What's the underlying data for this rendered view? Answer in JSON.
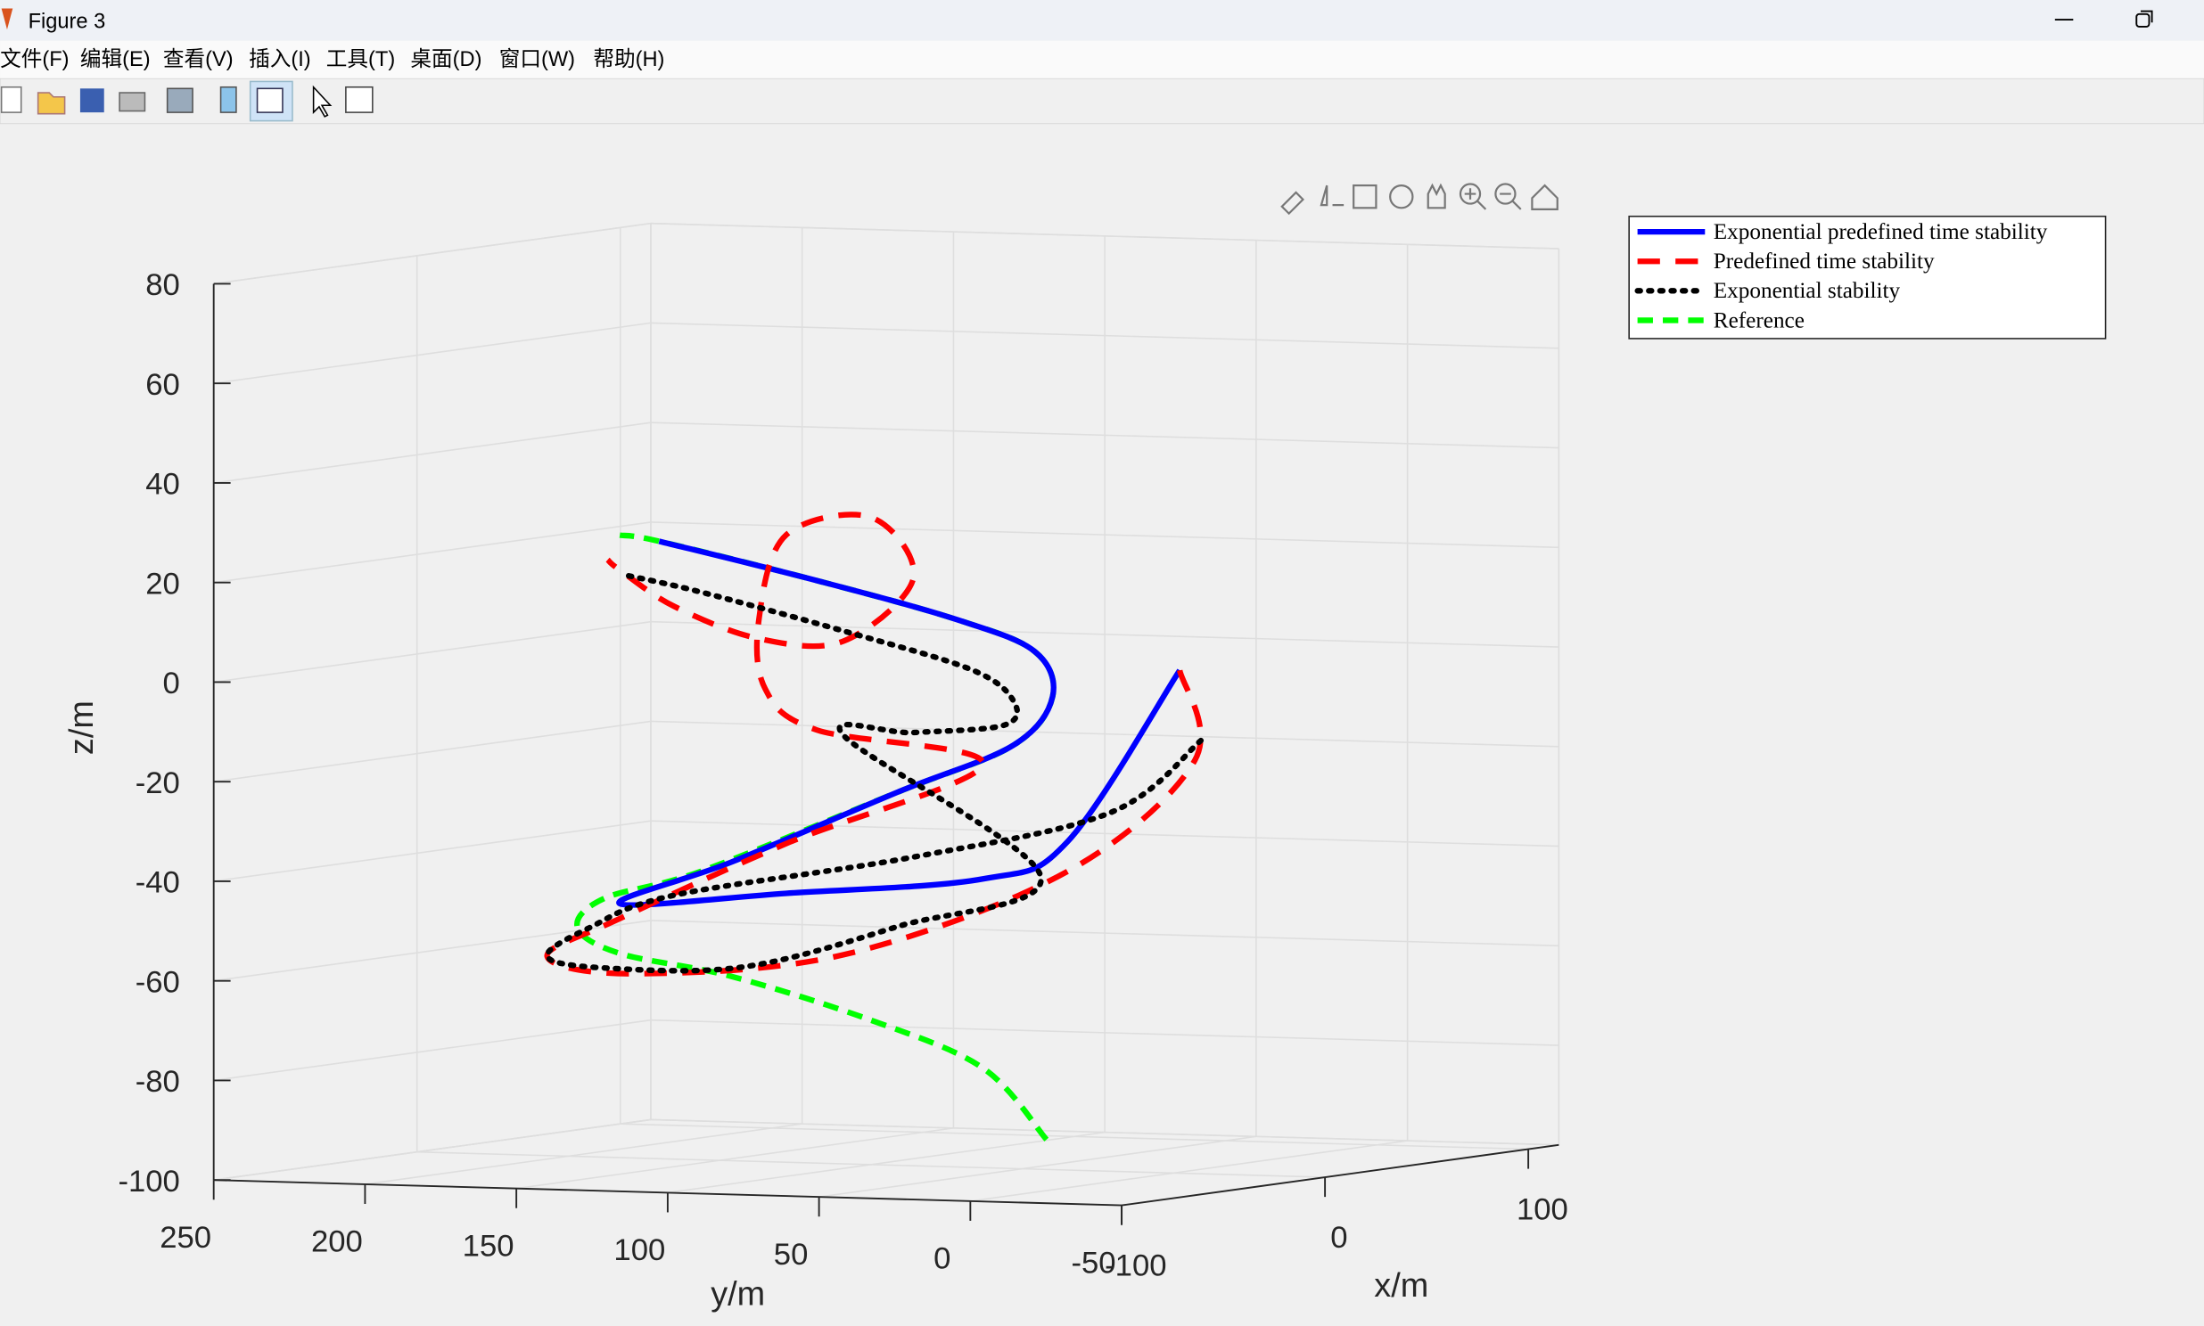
{
  "window": {
    "title": "Figure 3",
    "menu": [
      "文件(F)",
      "编辑(E)",
      "查看(V)",
      "插入(I)",
      "工具(T)",
      "桌面(D)",
      "窗口(W)",
      "帮助(H)"
    ]
  },
  "chart_data": {
    "type": "line3d",
    "xlabel": "x/m",
    "ylabel": "y/m",
    "zlabel": "z/m",
    "xlim": [
      -100,
      115
    ],
    "ylim": [
      -50,
      250
    ],
    "zlim": [
      -100,
      80
    ],
    "xticks": [
      -100,
      0,
      100
    ],
    "yticks": [
      250,
      200,
      150,
      100,
      50,
      0,
      -50
    ],
    "zticks": [
      80,
      60,
      40,
      20,
      0,
      -20,
      -40,
      -60,
      -80,
      -100
    ],
    "grid": true,
    "legend": "northeastoutside",
    "series": [
      {
        "name": "Exponential predefined time stability",
        "color": "#0000ff",
        "style": "solid",
        "x": [
          0,
          0,
          0,
          0,
          0,
          0,
          0,
          0,
          0,
          0,
          0,
          0,
          0
        ],
        "y": [
          -2,
          35,
          63,
          128,
          183,
          146,
          91,
          53,
          40,
          46,
          72,
          118,
          170
        ],
        "z": [
          1,
          -34,
          -42,
          -46,
          -49,
          -40,
          -25,
          -15,
          -5,
          4,
          10,
          17,
          24
        ]
      },
      {
        "name": "Predefined time stability",
        "color": "#ff0000",
        "style": "dashed",
        "x": [
          0,
          0,
          0,
          0,
          0,
          0,
          0,
          0,
          0,
          0,
          0,
          0,
          0,
          0,
          0,
          0,
          0,
          0,
          0,
          0
        ],
        "y": [
          -2,
          -7,
          35,
          109,
          179,
          207,
          183,
          128,
          63,
          118,
          135,
          137,
          128,
          100,
          86,
          109,
          137,
          165,
          183,
          187
        ],
        "z": [
          1,
          -17,
          -40,
          -58,
          -63,
          -60,
          -52,
          -36,
          -19,
          -13,
          -5,
          9,
          26,
          30,
          18,
          5,
          5,
          11,
          18,
          20
        ]
      },
      {
        "name": "Exponential stability",
        "color": "#000000",
        "style": "dotted",
        "x": [
          0,
          0,
          0,
          0,
          0,
          0,
          0,
          0,
          0,
          0,
          0,
          0,
          0,
          0,
          0,
          0,
          0,
          0
        ],
        "y": [
          -9,
          21,
          86,
          165,
          193,
          207,
          188,
          142,
          91,
          44,
          109,
          86,
          56,
          53,
          67,
          109,
          156,
          181
        ],
        "z": [
          -13,
          -28,
          -38,
          -47,
          -54,
          -60,
          -62,
          -61,
          -52,
          -41,
          -14,
          -13,
          -11,
          -6,
          0,
          7,
          14,
          17
        ]
      },
      {
        "name": "Reference",
        "color": "#00ff00",
        "style": "dashed2",
        "x": [
          0,
          0,
          0,
          0,
          0,
          0,
          0,
          0,
          0,
          0,
          0,
          0,
          0,
          0,
          0,
          0
        ],
        "y": [
          42,
          63,
          100,
          146,
          183,
          197,
          188,
          156,
          91,
          53,
          40,
          46,
          72,
          118,
          170,
          183
        ],
        "z": [
          -94,
          -80,
          -71,
          -63,
          -59,
          -54,
          -48,
          -42,
          -25,
          -15,
          -5,
          4,
          10,
          17,
          24,
          25
        ]
      }
    ]
  }
}
